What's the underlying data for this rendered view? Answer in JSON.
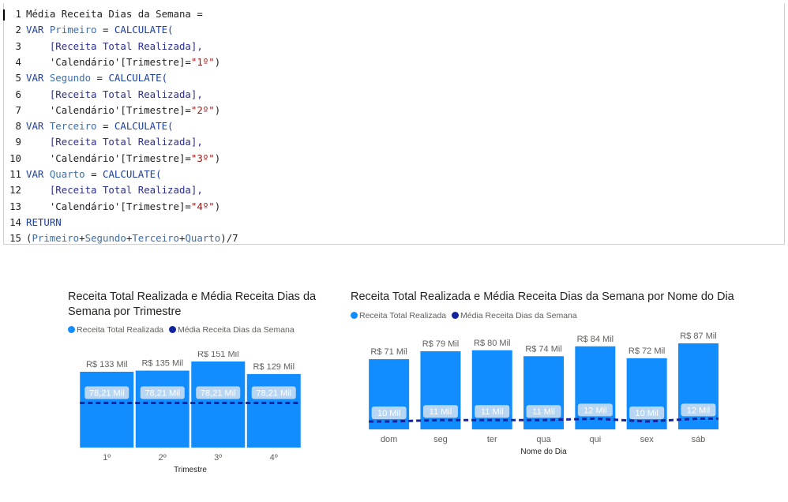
{
  "editor": {
    "lines": [
      [
        {
          "t": "Média Receita Dias da Semana = ",
          "c": "op"
        }
      ],
      [
        {
          "t": "VAR ",
          "c": "kw"
        },
        {
          "t": "Primeiro",
          "c": "vn"
        },
        {
          "t": " = ",
          "c": "op"
        },
        {
          "t": "CALCULATE(",
          "c": "kw"
        }
      ],
      [
        {
          "t": "    [Receita Total Realizada],",
          "c": "ms"
        }
      ],
      [
        {
          "t": "    'Calendário'[Trimestre]=",
          "c": "tb"
        },
        {
          "t": "\"1º\"",
          "c": "st"
        },
        {
          "t": ")",
          "c": "op"
        }
      ],
      [
        {
          "t": "VAR ",
          "c": "kw"
        },
        {
          "t": "Segundo",
          "c": "vn"
        },
        {
          "t": " = ",
          "c": "op"
        },
        {
          "t": "CALCULATE(",
          "c": "kw"
        }
      ],
      [
        {
          "t": "    [Receita Total Realizada],",
          "c": "ms"
        }
      ],
      [
        {
          "t": "    'Calendário'[Trimestre]=",
          "c": "tb"
        },
        {
          "t": "\"2º\"",
          "c": "st"
        },
        {
          "t": ")",
          "c": "op"
        }
      ],
      [
        {
          "t": "VAR ",
          "c": "kw"
        },
        {
          "t": "Terceiro",
          "c": "vn"
        },
        {
          "t": " = ",
          "c": "op"
        },
        {
          "t": "CALCULATE(",
          "c": "kw"
        }
      ],
      [
        {
          "t": "    [Receita Total Realizada],",
          "c": "ms"
        }
      ],
      [
        {
          "t": "    'Calendário'[Trimestre]=",
          "c": "tb"
        },
        {
          "t": "\"3º\"",
          "c": "st"
        },
        {
          "t": ")",
          "c": "op"
        }
      ],
      [
        {
          "t": "VAR ",
          "c": "kw"
        },
        {
          "t": "Quarto",
          "c": "vn"
        },
        {
          "t": " = ",
          "c": "op"
        },
        {
          "t": "CALCULATE(",
          "c": "kw"
        }
      ],
      [
        {
          "t": "    [Receita Total Realizada],",
          "c": "ms"
        }
      ],
      [
        {
          "t": "    'Calendário'[Trimestre]=",
          "c": "tb"
        },
        {
          "t": "\"4º\"",
          "c": "st"
        },
        {
          "t": ")",
          "c": "op"
        }
      ],
      [
        {
          "t": "RETURN",
          "c": "kw"
        }
      ],
      [
        {
          "t": "(",
          "c": "op"
        },
        {
          "t": "Primeiro",
          "c": "vn"
        },
        {
          "t": "+",
          "c": "op"
        },
        {
          "t": "Segundo",
          "c": "vn"
        },
        {
          "t": "+",
          "c": "op"
        },
        {
          "t": "Terceiro",
          "c": "vn"
        },
        {
          "t": "+",
          "c": "op"
        },
        {
          "t": "Quarto",
          "c": "vn"
        },
        {
          "t": ")/7",
          "c": "op"
        }
      ]
    ]
  },
  "colors": {
    "bar": "#118dff",
    "avg": "#12239e",
    "label_bg": "#c6dcf2",
    "grid": "#ffffff"
  },
  "chart_data": [
    {
      "type": "bar",
      "title": "Receita Total Realizada e Média Receita Dias da Semana por Trimestre",
      "title_lines": [
        "Receita Total Realizada e Média Receita Dias da",
        "Semana por Trimestre"
      ],
      "xlabel": "Trimestre",
      "ylabel": "",
      "legend": [
        "Receita Total Realizada",
        "Média Receita Dias da Semana"
      ],
      "legend_position": "top-left",
      "categories": [
        "1º",
        "2º",
        "3º",
        "4º"
      ],
      "series": [
        {
          "name": "Receita Total Realizada",
          "kind": "bar",
          "values": [
            133,
            135,
            151,
            129
          ],
          "labels": [
            "R$ 133 Mil",
            "R$ 135 Mil",
            "R$ 151 Mil",
            "R$ 129 Mil"
          ]
        },
        {
          "name": "Média Receita Dias da Semana",
          "kind": "line",
          "style": "dashed",
          "values": [
            78.21,
            78.21,
            78.21,
            78.21
          ],
          "labels": [
            "78,21 Mil",
            "78,21 Mil",
            "78,21 Mil",
            "78,21 Mil"
          ]
        }
      ],
      "ylim": [
        0,
        151
      ]
    },
    {
      "type": "bar",
      "title": "Receita Total Realizada e Média Receita Dias da Semana por Nome do Dia",
      "title_lines": [
        "Receita Total Realizada e Média Receita Dias da Semana por Nome do Dia"
      ],
      "xlabel": "Nome do Dia",
      "ylabel": "",
      "legend": [
        "Receita Total Realizada",
        "Média Receita Dias da Semana"
      ],
      "legend_position": "top-left",
      "categories": [
        "dom",
        "seg",
        "ter",
        "qua",
        "qui",
        "sex",
        "sáb"
      ],
      "series": [
        {
          "name": "Receita Total Realizada",
          "kind": "bar",
          "values": [
            71,
            79,
            80,
            74,
            84,
            72,
            87
          ],
          "labels": [
            "R$ 71 Mil",
            "R$ 79 Mil",
            "R$ 80 Mil",
            "R$ 74 Mil",
            "R$ 84 Mil",
            "R$ 72 Mil",
            "R$ 87 Mil"
          ]
        },
        {
          "name": "Média Receita Dias da Semana",
          "kind": "line",
          "style": "dashed",
          "values": [
            10,
            11,
            11,
            11,
            12,
            10,
            12
          ],
          "labels": [
            "10 Mil",
            "11 Mil",
            "11 Mil",
            "11 Mil",
            "12 Mil",
            "10 Mil",
            "12 Mil"
          ]
        }
      ],
      "ylim": [
        0,
        87
      ]
    }
  ]
}
